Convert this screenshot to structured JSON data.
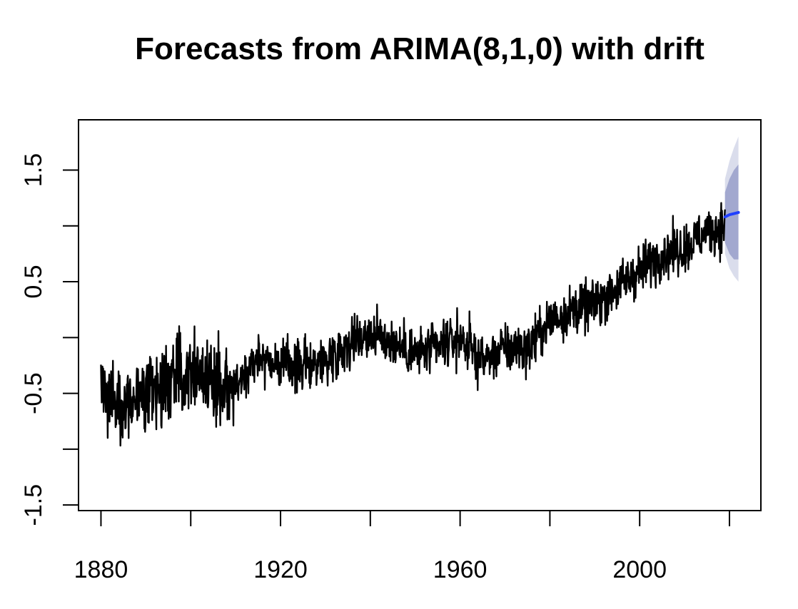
{
  "chart_data": {
    "type": "line",
    "title": "Forecasts from ARIMA(8,1,0) with drift",
    "xlabel": "",
    "ylabel": "",
    "xlim": [
      1875,
      2027
    ],
    "ylim": [
      -1.55,
      1.95
    ],
    "x_ticks": [
      1880,
      1900,
      1920,
      1940,
      1960,
      1980,
      2000,
      2020
    ],
    "x_tick_labels": [
      "1880",
      "",
      "1920",
      "",
      "1960",
      "",
      "2000",
      ""
    ],
    "y_ticks": [
      -1.5,
      -1.0,
      -0.5,
      0.0,
      0.5,
      1.0,
      1.5
    ],
    "y_tick_labels": [
      "-1.5",
      "",
      "-0.5",
      "",
      "0.5",
      "",
      "1.5"
    ],
    "grid": false,
    "colors": {
      "observed": "#000000",
      "forecast": "#1f3fff",
      "band_80": "#8f96c6",
      "band_95": "#d6d9ea"
    },
    "series": [
      {
        "role": "observed",
        "x": [
          1880,
          1885,
          1890,
          1895,
          1900,
          1905,
          1910,
          1915,
          1920,
          1925,
          1930,
          1935,
          1940,
          1945,
          1950,
          1955,
          1960,
          1965,
          1970,
          1975,
          1980,
          1985,
          1990,
          1995,
          2000,
          2005,
          2010,
          2015,
          2019
        ],
        "y": [
          -0.45,
          -0.6,
          -0.55,
          -0.4,
          -0.25,
          -0.4,
          -0.45,
          -0.15,
          -0.25,
          -0.25,
          -0.2,
          -0.05,
          0.05,
          -0.05,
          -0.15,
          -0.1,
          0.0,
          -0.2,
          -0.1,
          -0.1,
          0.15,
          0.25,
          0.3,
          0.45,
          0.6,
          0.75,
          0.8,
          0.95,
          1.0
        ]
      },
      {
        "role": "forecast",
        "x": [
          2019,
          2020,
          2021,
          2022
        ],
        "y": [
          1.08,
          1.1,
          1.11,
          1.12
        ]
      }
    ],
    "bands": [
      {
        "level": "95",
        "x": [
          2019,
          2020,
          2021,
          2022
        ],
        "lower": [
          0.75,
          0.62,
          0.55,
          0.5
        ],
        "upper": [
          1.42,
          1.58,
          1.7,
          1.8
        ]
      },
      {
        "level": "80",
        "x": [
          2019,
          2020,
          2021,
          2022
        ],
        "lower": [
          0.85,
          0.75,
          0.7,
          0.7
        ],
        "upper": [
          1.3,
          1.42,
          1.5,
          1.55
        ]
      }
    ]
  }
}
